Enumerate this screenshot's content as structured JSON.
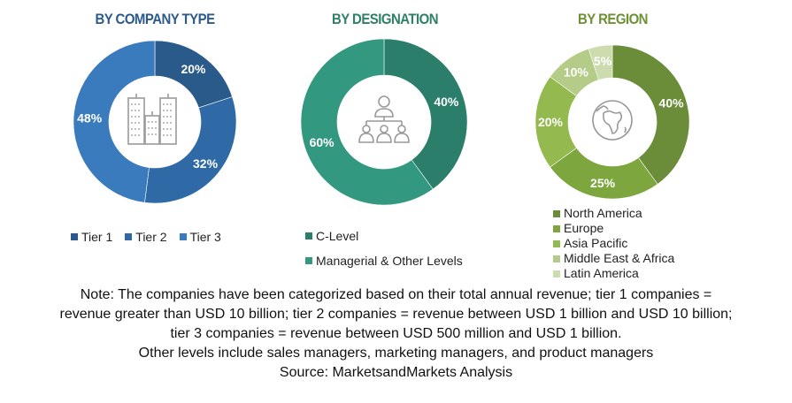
{
  "chart_data": [
    {
      "type": "pie",
      "title": "BY COMPANY TYPE",
      "categories": [
        "Tier 1",
        "Tier 2",
        "Tier 3"
      ],
      "values": [
        20,
        32,
        48
      ],
      "labels": [
        "20%",
        "32%",
        "48%"
      ],
      "colors": [
        "#2a5a8a",
        "#2f6aa6",
        "#3a7bbd"
      ],
      "center_icon": "buildings-icon",
      "legend_position": "bottom"
    },
    {
      "type": "pie",
      "title": "BY DESIGNATION",
      "categories": [
        "C-Level",
        "Managerial & Other Levels"
      ],
      "values": [
        40,
        60
      ],
      "labels": [
        "40%",
        "60%"
      ],
      "colors": [
        "#2a7e6a",
        "#339880"
      ],
      "center_icon": "org-hierarchy-icon",
      "legend_position": "bottom"
    },
    {
      "type": "pie",
      "title": "BY REGION",
      "categories": [
        "North America",
        "Europe",
        "Asia Pacific",
        "Middle East & Africa",
        "Latin America"
      ],
      "values": [
        40,
        25,
        20,
        10,
        5
      ],
      "labels": [
        "40%",
        "25%",
        "20%",
        "10%",
        "5%"
      ],
      "colors": [
        "#6b8c38",
        "#7ea63e",
        "#94b94e",
        "#b4cc88",
        "#ccdcaf"
      ],
      "center_icon": "globe-icon",
      "legend_position": "bottom"
    }
  ],
  "note": {
    "lines": [
      "Note: The companies have been categorized based on their total annual revenue; tier 1 companies =",
      "revenue greater than USD 10 billion; tier 2 companies = revenue between USD 1 billion and USD 10 billion;",
      "tier 3 companies = revenue between USD 500 million and USD 1 billion.",
      "Other levels include sales managers, marketing managers, and product managers",
      "Source: MarketsandMarkets Analysis"
    ]
  }
}
